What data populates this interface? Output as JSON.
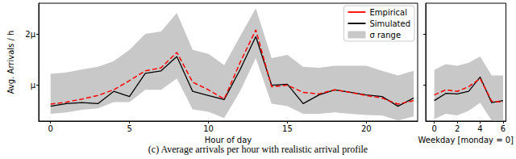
{
  "caption": "(c) Average arrivals per hour with realistic arrival profile",
  "chart_data": [
    {
      "type": "line",
      "xlabel": "Hour of day",
      "ylabel": "Avg. Arrivals / h",
      "x": [
        0,
        1,
        2,
        3,
        4,
        5,
        6,
        7,
        8,
        9,
        10,
        11,
        12,
        13,
        14,
        15,
        16,
        17,
        18,
        19,
        20,
        21,
        22,
        23
      ],
      "xlim": [
        -0.75,
        23.25
      ],
      "xticks": [
        0,
        5,
        10,
        15,
        20
      ],
      "ylim": [
        0.3,
        2.6
      ],
      "yticks": [
        {
          "value": 1,
          "label": "μ"
        },
        {
          "value": 2,
          "label": "2μ"
        }
      ],
      "grid": false,
      "legend": "upper right",
      "series": [
        {
          "name": "Empirical",
          "type": "line",
          "color": "#ff0000",
          "line_style": "dashed",
          "values": [
            0.63,
            0.67,
            0.73,
            0.8,
            0.91,
            1.09,
            1.28,
            1.34,
            1.64,
            1.06,
            0.91,
            0.73,
            1.44,
            2.08,
            0.97,
            1.0,
            0.86,
            0.83,
            0.91,
            0.86,
            0.8,
            0.75,
            0.63,
            0.7
          ]
        },
        {
          "name": "Simulated",
          "type": "line",
          "color": "#000000",
          "line_style": "solid",
          "values": [
            0.59,
            0.64,
            0.66,
            0.64,
            0.88,
            0.78,
            1.23,
            1.28,
            1.56,
            0.88,
            0.8,
            0.72,
            1.3,
            1.95,
            1.0,
            1.02,
            0.64,
            0.81,
            0.91,
            0.86,
            0.81,
            0.78,
            0.59,
            0.75
          ]
        },
        {
          "name": "σ range",
          "type": "band",
          "color": "#c8c8c8",
          "lower": [
            0.44,
            0.47,
            0.52,
            0.55,
            0.67,
            0.67,
            0.91,
            0.91,
            1.13,
            0.53,
            0.48,
            0.36,
            0.88,
            1.53,
            0.64,
            0.59,
            0.44,
            0.44,
            0.47,
            0.44,
            0.42,
            0.41,
            0.31,
            0.39
          ],
          "upper": [
            1.22,
            1.25,
            1.31,
            1.36,
            1.47,
            1.69,
            2.0,
            2.05,
            2.41,
            1.69,
            1.61,
            1.39,
            1.95,
            2.5,
            1.53,
            1.59,
            1.36,
            1.34,
            1.38,
            1.38,
            1.38,
            1.28,
            1.19,
            1.28
          ]
        }
      ]
    },
    {
      "type": "line",
      "xlabel": "Weekday [monday = 0]",
      "x": [
        0,
        1,
        2,
        3,
        4,
        5,
        6
      ],
      "xlim": [
        -0.75,
        6.25
      ],
      "xticks": [
        0,
        2,
        4,
        6
      ],
      "ylim": [
        0.3,
        2.6
      ],
      "yticks": [
        {
          "value": 1,
          "label": "μ"
        },
        {
          "value": 2,
          "label": "2μ"
        }
      ],
      "grid": false,
      "tick_labels": "x",
      "series": [
        {
          "name": "Empirical",
          "type": "line",
          "color": "#ff0000",
          "line_style": "dashed",
          "values": [
            0.81,
            0.91,
            0.88,
            0.97,
            1.13,
            0.69,
            0.67
          ]
        },
        {
          "name": "Simulated",
          "type": "line",
          "color": "#000000",
          "line_style": "solid",
          "values": [
            0.7,
            0.84,
            0.83,
            0.88,
            1.16,
            0.66,
            0.7
          ]
        },
        {
          "name": "σ range",
          "type": "band",
          "color": "#c8c8c8",
          "lower": [
            0.34,
            0.44,
            0.41,
            0.5,
            0.66,
            0.31,
            0.31
          ],
          "upper": [
            1.3,
            1.41,
            1.38,
            1.44,
            1.56,
            1.19,
            1.19
          ]
        }
      ]
    }
  ]
}
